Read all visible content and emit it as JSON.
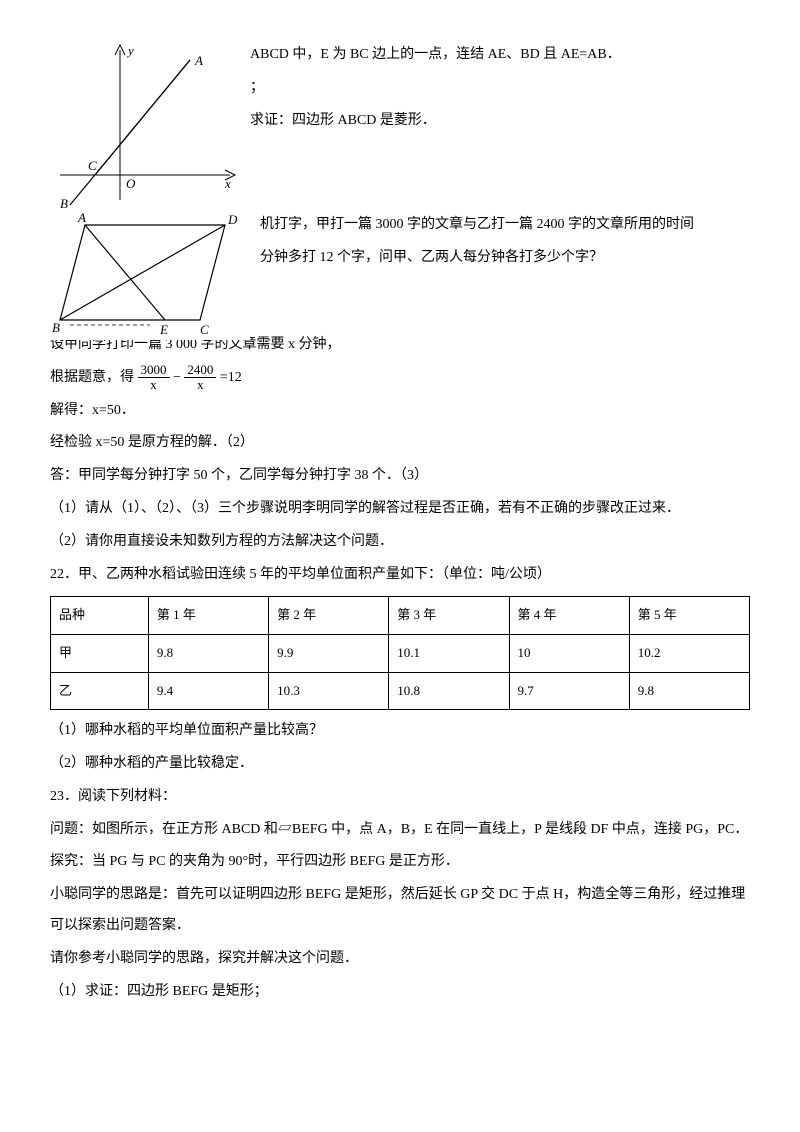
{
  "fig1": {
    "labels": {
      "y": "y",
      "A": "A",
      "x": "x",
      "O": "O",
      "C": "C",
      "B": "B"
    }
  },
  "fig2": {
    "labels": {
      "A": "A",
      "D": "D",
      "B": "B",
      "E": "E",
      "C": "C"
    }
  },
  "p20_1": "ABCD 中，E 为 BC 边上的一点，连结 AE、BD 且 AE=AB．",
  "p20_2": "；",
  "p20_3": "求证：四边形 ABCD 是菱形．",
  "p21_1": "机打字，甲打一篇 3000 字的文章与乙打一篇 2400 字的文章所用的时间",
  "p21_2": "分钟多打 12 个字，问甲、乙两人每分钟各打多少个字？",
  "p21_set": "设甲同学打印一篇 3 000 字的文章需要 x 分钟，",
  "p21_eq_prefix": "根据题意，得",
  "frac1_num": "3000",
  "frac1_den": "x",
  "minus": " − ",
  "frac2_num": "2400",
  "frac2_den": "x",
  "eq_tail": "=12",
  "p21_solve": "解得：x=50．",
  "p21_check": "经检验 x=50 是原方程的解．（2）",
  "p21_ans": "答：甲同学每分钟打字 50 个，乙同学每分钟打字 38 个．（3）",
  "p21_q1": "（1）请从（1）、（2）、（3）三个步骤说明李明同学的解答过程是否正确，若有不正确的步骤改正过来．",
  "p21_q2": "（2）请你用直接设未知数列方程的方法解决这个问题．",
  "p22_title": "22．甲、乙两种水稻试验田连续 5 年的平均单位面积产量如下：（单位：吨/公顷）",
  "table": {
    "headers": [
      "品种",
      "第 1 年",
      "第 2 年",
      "第 3 年",
      "第 4 年",
      "第 5 年"
    ],
    "rows": [
      [
        "甲",
        "9.8",
        "9.9",
        "10.1",
        "10",
        "10.2"
      ],
      [
        "乙",
        "9.4",
        "10.3",
        "10.8",
        "9.7",
        "9.8"
      ]
    ],
    "col_widths": [
      "14%",
      "17.2%",
      "17.2%",
      "17.2%",
      "17.2%",
      "17.2%"
    ]
  },
  "p22_q1": "（1）哪种水稻的平均单位面积产量比较高？",
  "p22_q2": "（2）哪种水稻的产量比较稳定．",
  "p23_title": "23．阅读下列材料：",
  "p23_1": "问题：如图所示，在正方形 ABCD 和▱BEFG 中，点 A，B，E 在同一直线上，P 是线段 DF 中点，连接 PG，PC．",
  "p23_2": "探究：当 PG 与 PC 的夹角为 90°时，平行四边形 BEFG 是正方形．",
  "p23_3": "小聪同学的思路是：首先可以证明四边形 BEFG 是矩形，然后延长 GP 交 DC 于点 H，构造全等三角形，经过推理可以探索出问题答案．",
  "p23_4": "请你参考小聪同学的思路，探究并解决这个问题．",
  "p23_5": "（1）求证：四边形 BEFG 是矩形；",
  "colors": {
    "text": "#000000",
    "background": "#ffffff",
    "border": "#000000"
  }
}
